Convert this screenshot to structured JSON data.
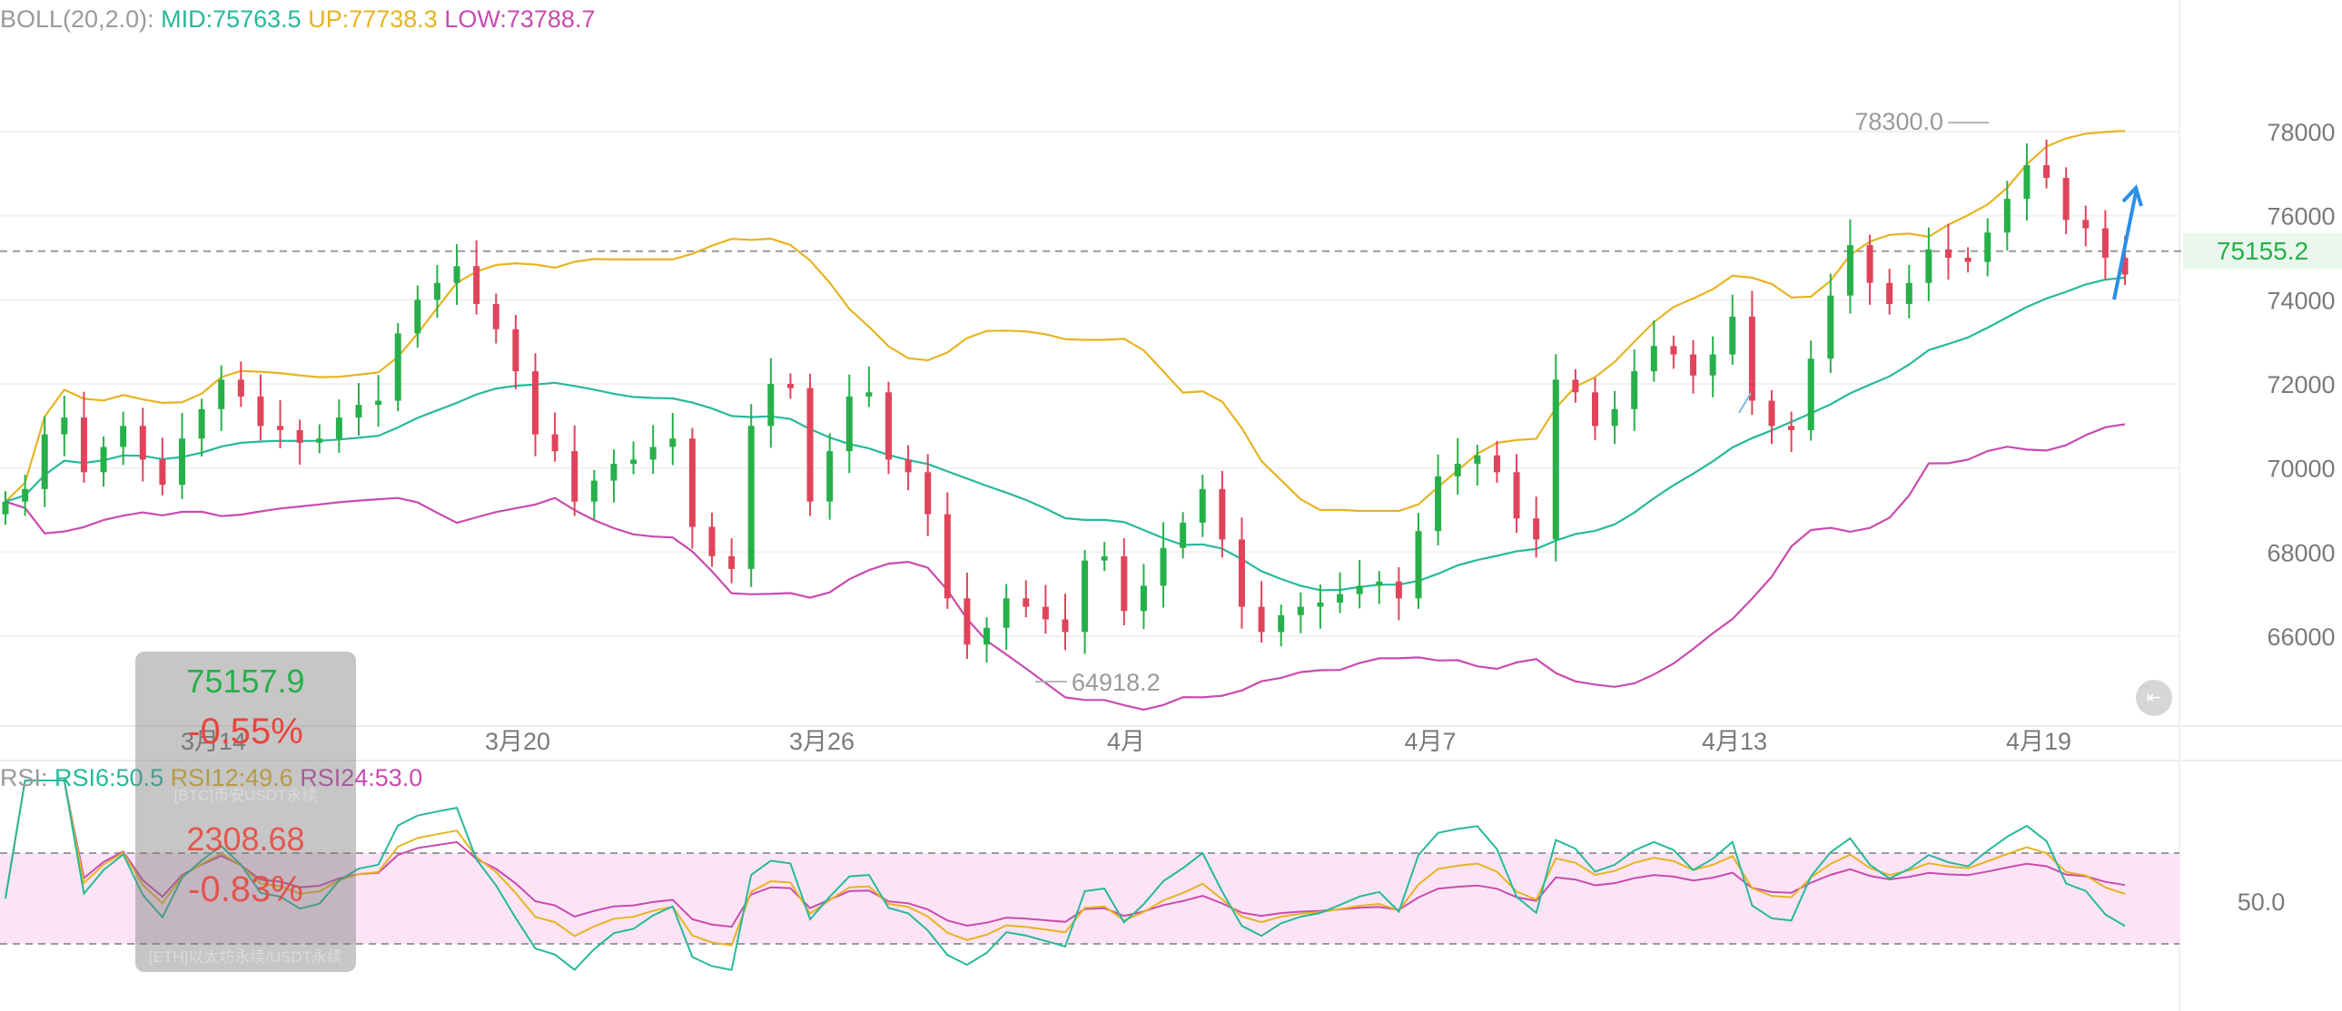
{
  "boll_legend": {
    "prefix": "BOLL(20,2.0): ",
    "mid": "MID:75763.5",
    "up": "UP:77738.3",
    "low": "LOW:73788.7"
  },
  "rsi_legend": {
    "prefix": "RSI: ",
    "rsi6": "RSI6:50.5",
    "rsi12": "RSI12:49.6",
    "rsi24": "RSI24:53.0"
  },
  "price_tag": "75155.2",
  "overlay": {
    "price": "75157.9",
    "change_pct": "-0.55%",
    "pair_name": "[BTC]币安USDT永续",
    "second_value": "2308.68",
    "second_change_pct": "-0.83%",
    "second_name": "[ETH]以太坊永续/USDT永续"
  },
  "colors": {
    "mid": "#26b99a",
    "up": "#e6b422",
    "low": "#c94bb0",
    "candle_up": "#27b04a",
    "candle_down": "#e0445a",
    "arrow": "#2b8fe6",
    "rsi_band": "#fce4f6"
  },
  "chart_data": {
    "type": "candlestick",
    "price_axis": {
      "ticks": [
        66000,
        68000,
        70000,
        72000,
        74000,
        76000,
        78000
      ],
      "range": [
        64000,
        79300
      ]
    },
    "date_labels": [
      "3月14",
      "3月20",
      "3月26",
      "4月",
      "4月7",
      "4月13",
      "4月19"
    ],
    "annotations": {
      "high": "78300.0",
      "low": "64918.2"
    },
    "last_price": 75155.2,
    "close": [
      69200,
      69500,
      70800,
      71200,
      69900,
      70500,
      71000,
      70200,
      69600,
      70700,
      71400,
      72100,
      71700,
      71000,
      70900,
      70600,
      70700,
      71200,
      71500,
      71600,
      73200,
      74000,
      74400,
      74800,
      73900,
      73300,
      72300,
      70800,
      70400,
      69200,
      69700,
      70100,
      70200,
      70500,
      70700,
      68600,
      67900,
      67600,
      71000,
      72000,
      71900,
      69200,
      70400,
      71700,
      71800,
      70200,
      69900,
      68900,
      66900,
      65800,
      66200,
      66900,
      66700,
      66400,
      66100,
      67800,
      67900,
      66600,
      67200,
      68100,
      68700,
      69500,
      68300,
      66700,
      66100,
      66500,
      66700,
      66800,
      67000,
      67200,
      67300,
      66900,
      68500,
      69800,
      70100,
      70300,
      69900,
      68800,
      68300,
      72100,
      71800,
      71000,
      71400,
      72300,
      72900,
      72700,
      72200,
      72700,
      73600,
      71600,
      71000,
      70900,
      72600,
      74100,
      75300,
      74400,
      73900,
      74400,
      75200,
      75000,
      74900,
      75600,
      76400,
      77200,
      76900,
      75900,
      75700,
      75000,
      74600
    ],
    "boll": {
      "mid_end": 75763.5,
      "up_end": 77738.3,
      "low_end": 73788.7
    },
    "rsi": {
      "band": [
        30,
        70
      ],
      "label": "50.0",
      "rsi6_end": 50.5,
      "rsi12_end": 49.6,
      "rsi24_end": 53.0
    }
  }
}
